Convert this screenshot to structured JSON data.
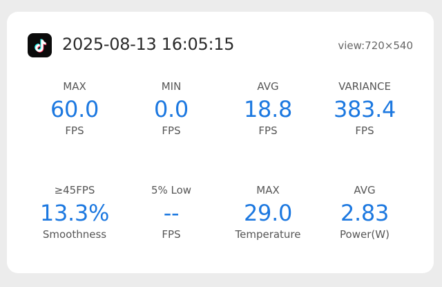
{
  "header": {
    "app_icon": "tiktok-icon",
    "timestamp": "2025-08-13 16:05:15",
    "view": "view:720×540"
  },
  "metrics_row1": [
    {
      "label": "MAX",
      "value": "60.0",
      "unit": "FPS"
    },
    {
      "label": "MIN",
      "value": "0.0",
      "unit": "FPS"
    },
    {
      "label": "AVG",
      "value": "18.8",
      "unit": "FPS"
    },
    {
      "label": "VARIANCE",
      "value": "383.4",
      "unit": "FPS"
    }
  ],
  "metrics_row2": [
    {
      "label": "≥45FPS",
      "value": "13.3%",
      "unit": "Smoothness"
    },
    {
      "label": "5% Low",
      "value": "--",
      "unit": "FPS"
    },
    {
      "label": "MAX",
      "value": "29.0",
      "unit": "Temperature"
    },
    {
      "label": "AVG",
      "value": "2.83",
      "unit": "Power(W)"
    }
  ],
  "colors": {
    "accent": "#1c78e0",
    "card": "#ffffff",
    "background": "#ececec"
  }
}
